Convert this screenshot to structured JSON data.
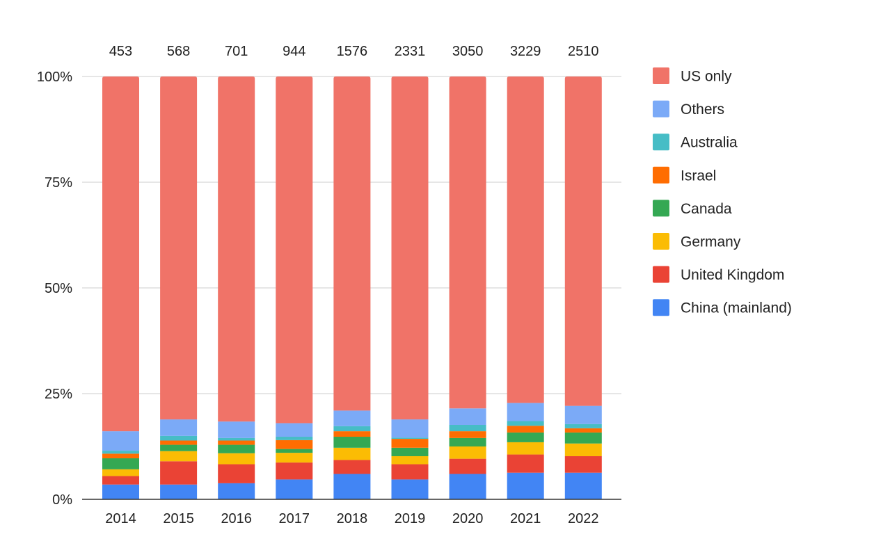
{
  "chart_data": {
    "type": "bar",
    "stacked": true,
    "normalized": true,
    "categories": [
      "2014",
      "2015",
      "2016",
      "2017",
      "2018",
      "2019",
      "2020",
      "2021",
      "2022"
    ],
    "totals": [
      "453",
      "568",
      "701",
      "944",
      "1576",
      "2331",
      "3050",
      "3229",
      "2510"
    ],
    "y_ticks": [
      "0%",
      "25%",
      "50%",
      "75%",
      "100%"
    ],
    "ylim": [
      0,
      100
    ],
    "legend_position": "right",
    "series": [
      {
        "name": "China (mainland)",
        "color": "#4285F4",
        "values": [
          3.5,
          3.5,
          3.8,
          4.7,
          6.0,
          4.7,
          6.0,
          6.3,
          6.3
        ]
      },
      {
        "name": "United Kingdom",
        "color": "#EA4335",
        "values": [
          2.0,
          5.5,
          4.5,
          4.0,
          3.3,
          3.6,
          3.6,
          4.3,
          3.9
        ]
      },
      {
        "name": "Germany",
        "color": "#FBBC04",
        "values": [
          1.6,
          2.4,
          2.6,
          2.3,
          2.9,
          1.9,
          2.9,
          2.9,
          3.0
        ]
      },
      {
        "name": "Canada",
        "color": "#34A853",
        "values": [
          2.6,
          1.5,
          2.0,
          0.9,
          2.6,
          2.0,
          2.0,
          2.3,
          2.6
        ]
      },
      {
        "name": "Israel",
        "color": "#FF6D01",
        "values": [
          1.1,
          1.0,
          1.0,
          2.1,
          1.3,
          2.1,
          1.6,
          1.6,
          1.0
        ]
      },
      {
        "name": "Australia",
        "color": "#46BDC6",
        "values": [
          0.7,
          1.1,
          0.6,
          0.8,
          1.2,
          0.3,
          1.5,
          1.1,
          1.0
        ]
      },
      {
        "name": "Others",
        "color": "#7BAAF7",
        "values": [
          4.6,
          3.9,
          3.9,
          3.2,
          3.7,
          4.3,
          3.9,
          4.3,
          4.3
        ]
      },
      {
        "name": "US only",
        "color": "#F07368",
        "values": [
          83.9,
          81.1,
          81.6,
          82.0,
          79.0,
          81.1,
          78.5,
          77.2,
          77.9
        ]
      }
    ],
    "legend_order": [
      "US only",
      "Others",
      "Australia",
      "Israel",
      "Canada",
      "Germany",
      "United Kingdom",
      "China (mainland)"
    ]
  }
}
